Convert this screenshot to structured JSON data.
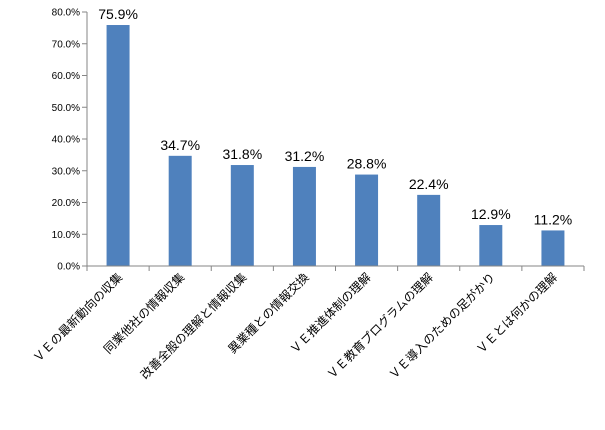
{
  "chart_data": {
    "type": "bar",
    "categories": [
      "ＶＥの最新動向の収集",
      "同業他社の情報収集",
      "改善全般の理解と情報収集",
      "異業種との情報交換",
      "ＶＥ推進体制の理解",
      "ＶＥ教育プログラムの理解",
      "ＶＥ導入のための足がかり",
      "ＶＥとは何かの理解"
    ],
    "values": [
      75.9,
      34.7,
      31.8,
      31.2,
      28.8,
      22.4,
      12.9,
      11.2
    ],
    "data_labels": [
      "75.9%",
      "34.7%",
      "31.8%",
      "31.2%",
      "28.8%",
      "22.4%",
      "12.9%",
      "11.2%"
    ],
    "y_ticks": [
      "0.0%",
      "10.0%",
      "20.0%",
      "30.0%",
      "40.0%",
      "50.0%",
      "60.0%",
      "70.0%",
      "80.0%"
    ],
    "ylim": [
      0,
      80
    ],
    "title": "",
    "xlabel": "",
    "ylabel": "",
    "bar_color": "#4f81bd",
    "grid": false,
    "legend": "none"
  }
}
